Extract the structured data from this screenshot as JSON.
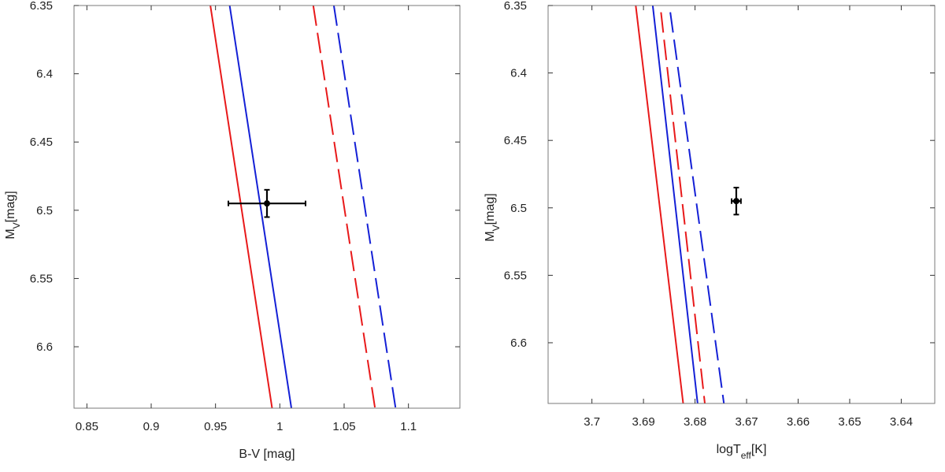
{
  "chart_data": [
    {
      "type": "line",
      "title": "",
      "xlabel": "B-V [mag]",
      "ylabel": {
        "main": "M",
        "sub": "V",
        "rest": "[mag]"
      },
      "xlim": [
        0.84,
        1.14
      ],
      "ylim": [
        6.35,
        6.645
      ],
      "y_inverted": true,
      "x_inverted": false,
      "xticks": [
        {
          "value": 0.85,
          "label": "0.85"
        },
        {
          "value": 0.9,
          "label": "0.9"
        },
        {
          "value": 0.95,
          "label": "0.95"
        },
        {
          "value": 1.0,
          "label": "1"
        },
        {
          "value": 1.05,
          "label": "1.05"
        },
        {
          "value": 1.1,
          "label": "1.1"
        }
      ],
      "yticks": [
        {
          "value": 6.35,
          "label": "6.35"
        },
        {
          "value": 6.4,
          "label": "6.4"
        },
        {
          "value": 6.45,
          "label": "6.45"
        },
        {
          "value": 6.5,
          "label": "6.5"
        },
        {
          "value": 6.55,
          "label": "6.55"
        },
        {
          "value": 6.6,
          "label": "6.6"
        }
      ],
      "series": [
        {
          "name": "red-solid",
          "color": "#e8191a",
          "dash": "solid",
          "x": [
            0.946,
            0.994
          ],
          "y": [
            6.35,
            6.645
          ]
        },
        {
          "name": "blue-solid",
          "color": "#1420d6",
          "dash": "solid",
          "x": [
            0.961,
            1.009
          ],
          "y": [
            6.35,
            6.645
          ]
        },
        {
          "name": "red-dashed",
          "color": "#e8191a",
          "dash": "dashed",
          "x": [
            1.026,
            1.074
          ],
          "y": [
            6.35,
            6.645
          ]
        },
        {
          "name": "blue-dashed",
          "color": "#1420d6",
          "dash": "dashed",
          "x": [
            1.042,
            1.09
          ],
          "y": [
            6.35,
            6.645
          ]
        }
      ],
      "points": [
        {
          "x": 0.99,
          "y": 6.495,
          "xerr": 0.03,
          "yerr": 0.01,
          "color": "#000000"
        }
      ]
    },
    {
      "type": "line",
      "title": "",
      "xlabel": {
        "main": "logT",
        "sub": "eff",
        "rest": "[K]"
      },
      "ylabel": {
        "main": "M",
        "sub": "V",
        "rest": "[mag]"
      },
      "xlim": [
        3.7085,
        3.6335
      ],
      "ylim": [
        6.35,
        6.645
      ],
      "y_inverted": true,
      "x_inverted": true,
      "xticks": [
        {
          "value": 3.7,
          "label": "3.7"
        },
        {
          "value": 3.69,
          "label": "3.69"
        },
        {
          "value": 3.68,
          "label": "3.68"
        },
        {
          "value": 3.67,
          "label": "3.67"
        },
        {
          "value": 3.66,
          "label": "3.66"
        },
        {
          "value": 3.65,
          "label": "3.65"
        },
        {
          "value": 3.64,
          "label": "3.64"
        }
      ],
      "yticks": [
        {
          "value": 6.35,
          "label": "6.35"
        },
        {
          "value": 6.4,
          "label": "6.4"
        },
        {
          "value": 6.45,
          "label": "6.45"
        },
        {
          "value": 6.5,
          "label": "6.5"
        },
        {
          "value": 6.55,
          "label": "6.55"
        },
        {
          "value": 6.6,
          "label": "6.6"
        }
      ],
      "series": [
        {
          "name": "red-solid",
          "color": "#e8191a",
          "dash": "solid",
          "x": [
            3.6915,
            3.6823
          ],
          "y": [
            6.35,
            6.645
          ]
        },
        {
          "name": "blue-solid",
          "color": "#1420d6",
          "dash": "solid",
          "x": [
            3.6882,
            3.6795
          ],
          "y": [
            6.35,
            6.645
          ]
        },
        {
          "name": "red-dashed",
          "color": "#e8191a",
          "dash": "dashed",
          "x": [
            3.6866,
            3.6781
          ],
          "y": [
            6.355,
            6.645
          ]
        },
        {
          "name": "blue-dashed",
          "color": "#1420d6",
          "dash": "dashed",
          "x": [
            3.6848,
            3.6744
          ],
          "y": [
            6.355,
            6.645
          ]
        }
      ],
      "points": [
        {
          "x": 3.672,
          "y": 6.495,
          "xerr": 0.0009,
          "yerr": 0.01,
          "color": "#000000"
        }
      ]
    }
  ]
}
